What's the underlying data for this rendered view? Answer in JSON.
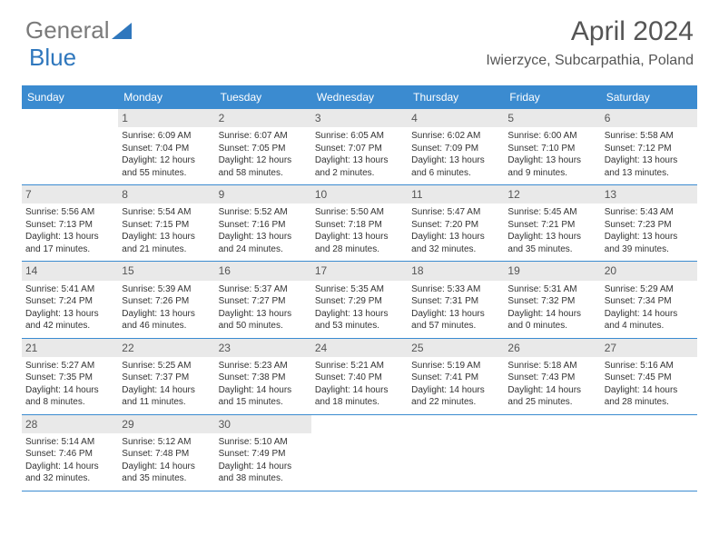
{
  "brand": {
    "name1": "General",
    "name2": "Blue"
  },
  "title": "April 2024",
  "location": "Iwierzyce, Subcarpathia, Poland",
  "colors": {
    "header_bg": "#3b8bd0",
    "header_text": "#ffffff",
    "daynum_bg": "#e9e9e9",
    "text": "#333333",
    "divider": "#3b8bd0",
    "logo_gray": "#7a7a7a",
    "logo_blue": "#2f77bd"
  },
  "day_names": [
    "Sunday",
    "Monday",
    "Tuesday",
    "Wednesday",
    "Thursday",
    "Friday",
    "Saturday"
  ],
  "weeks": [
    [
      {
        "empty": true
      },
      {
        "n": "1",
        "sunrise": "Sunrise: 6:09 AM",
        "sunset": "Sunset: 7:04 PM",
        "d1": "Daylight: 12 hours",
        "d2": "and 55 minutes."
      },
      {
        "n": "2",
        "sunrise": "Sunrise: 6:07 AM",
        "sunset": "Sunset: 7:05 PM",
        "d1": "Daylight: 12 hours",
        "d2": "and 58 minutes."
      },
      {
        "n": "3",
        "sunrise": "Sunrise: 6:05 AM",
        "sunset": "Sunset: 7:07 PM",
        "d1": "Daylight: 13 hours",
        "d2": "and 2 minutes."
      },
      {
        "n": "4",
        "sunrise": "Sunrise: 6:02 AM",
        "sunset": "Sunset: 7:09 PM",
        "d1": "Daylight: 13 hours",
        "d2": "and 6 minutes."
      },
      {
        "n": "5",
        "sunrise": "Sunrise: 6:00 AM",
        "sunset": "Sunset: 7:10 PM",
        "d1": "Daylight: 13 hours",
        "d2": "and 9 minutes."
      },
      {
        "n": "6",
        "sunrise": "Sunrise: 5:58 AM",
        "sunset": "Sunset: 7:12 PM",
        "d1": "Daylight: 13 hours",
        "d2": "and 13 minutes."
      }
    ],
    [
      {
        "n": "7",
        "sunrise": "Sunrise: 5:56 AM",
        "sunset": "Sunset: 7:13 PM",
        "d1": "Daylight: 13 hours",
        "d2": "and 17 minutes."
      },
      {
        "n": "8",
        "sunrise": "Sunrise: 5:54 AM",
        "sunset": "Sunset: 7:15 PM",
        "d1": "Daylight: 13 hours",
        "d2": "and 21 minutes."
      },
      {
        "n": "9",
        "sunrise": "Sunrise: 5:52 AM",
        "sunset": "Sunset: 7:16 PM",
        "d1": "Daylight: 13 hours",
        "d2": "and 24 minutes."
      },
      {
        "n": "10",
        "sunrise": "Sunrise: 5:50 AM",
        "sunset": "Sunset: 7:18 PM",
        "d1": "Daylight: 13 hours",
        "d2": "and 28 minutes."
      },
      {
        "n": "11",
        "sunrise": "Sunrise: 5:47 AM",
        "sunset": "Sunset: 7:20 PM",
        "d1": "Daylight: 13 hours",
        "d2": "and 32 minutes."
      },
      {
        "n": "12",
        "sunrise": "Sunrise: 5:45 AM",
        "sunset": "Sunset: 7:21 PM",
        "d1": "Daylight: 13 hours",
        "d2": "and 35 minutes."
      },
      {
        "n": "13",
        "sunrise": "Sunrise: 5:43 AM",
        "sunset": "Sunset: 7:23 PM",
        "d1": "Daylight: 13 hours",
        "d2": "and 39 minutes."
      }
    ],
    [
      {
        "n": "14",
        "sunrise": "Sunrise: 5:41 AM",
        "sunset": "Sunset: 7:24 PM",
        "d1": "Daylight: 13 hours",
        "d2": "and 42 minutes."
      },
      {
        "n": "15",
        "sunrise": "Sunrise: 5:39 AM",
        "sunset": "Sunset: 7:26 PM",
        "d1": "Daylight: 13 hours",
        "d2": "and 46 minutes."
      },
      {
        "n": "16",
        "sunrise": "Sunrise: 5:37 AM",
        "sunset": "Sunset: 7:27 PM",
        "d1": "Daylight: 13 hours",
        "d2": "and 50 minutes."
      },
      {
        "n": "17",
        "sunrise": "Sunrise: 5:35 AM",
        "sunset": "Sunset: 7:29 PM",
        "d1": "Daylight: 13 hours",
        "d2": "and 53 minutes."
      },
      {
        "n": "18",
        "sunrise": "Sunrise: 5:33 AM",
        "sunset": "Sunset: 7:31 PM",
        "d1": "Daylight: 13 hours",
        "d2": "and 57 minutes."
      },
      {
        "n": "19",
        "sunrise": "Sunrise: 5:31 AM",
        "sunset": "Sunset: 7:32 PM",
        "d1": "Daylight: 14 hours",
        "d2": "and 0 minutes."
      },
      {
        "n": "20",
        "sunrise": "Sunrise: 5:29 AM",
        "sunset": "Sunset: 7:34 PM",
        "d1": "Daylight: 14 hours",
        "d2": "and 4 minutes."
      }
    ],
    [
      {
        "n": "21",
        "sunrise": "Sunrise: 5:27 AM",
        "sunset": "Sunset: 7:35 PM",
        "d1": "Daylight: 14 hours",
        "d2": "and 8 minutes."
      },
      {
        "n": "22",
        "sunrise": "Sunrise: 5:25 AM",
        "sunset": "Sunset: 7:37 PM",
        "d1": "Daylight: 14 hours",
        "d2": "and 11 minutes."
      },
      {
        "n": "23",
        "sunrise": "Sunrise: 5:23 AM",
        "sunset": "Sunset: 7:38 PM",
        "d1": "Daylight: 14 hours",
        "d2": "and 15 minutes."
      },
      {
        "n": "24",
        "sunrise": "Sunrise: 5:21 AM",
        "sunset": "Sunset: 7:40 PM",
        "d1": "Daylight: 14 hours",
        "d2": "and 18 minutes."
      },
      {
        "n": "25",
        "sunrise": "Sunrise: 5:19 AM",
        "sunset": "Sunset: 7:41 PM",
        "d1": "Daylight: 14 hours",
        "d2": "and 22 minutes."
      },
      {
        "n": "26",
        "sunrise": "Sunrise: 5:18 AM",
        "sunset": "Sunset: 7:43 PM",
        "d1": "Daylight: 14 hours",
        "d2": "and 25 minutes."
      },
      {
        "n": "27",
        "sunrise": "Sunrise: 5:16 AM",
        "sunset": "Sunset: 7:45 PM",
        "d1": "Daylight: 14 hours",
        "d2": "and 28 minutes."
      }
    ],
    [
      {
        "n": "28",
        "sunrise": "Sunrise: 5:14 AM",
        "sunset": "Sunset: 7:46 PM",
        "d1": "Daylight: 14 hours",
        "d2": "and 32 minutes."
      },
      {
        "n": "29",
        "sunrise": "Sunrise: 5:12 AM",
        "sunset": "Sunset: 7:48 PM",
        "d1": "Daylight: 14 hours",
        "d2": "and 35 minutes."
      },
      {
        "n": "30",
        "sunrise": "Sunrise: 5:10 AM",
        "sunset": "Sunset: 7:49 PM",
        "d1": "Daylight: 14 hours",
        "d2": "and 38 minutes."
      },
      {
        "empty": true
      },
      {
        "empty": true
      },
      {
        "empty": true
      },
      {
        "empty": true
      }
    ]
  ]
}
